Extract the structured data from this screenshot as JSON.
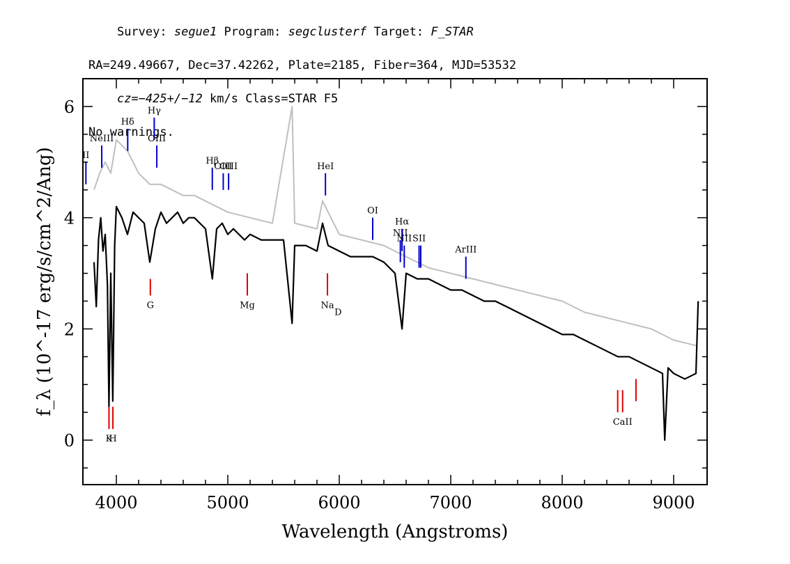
{
  "header": {
    "line1": {
      "survey_label": "Survey: ",
      "survey": "segue1",
      "program_label": " Program: ",
      "program": "segclusterf",
      "target_label": " Target: ",
      "target": "F_STAR"
    },
    "line2": "RA=249.49667, Dec=37.42262, Plate=2185, Fiber=364, MJD=53532",
    "line3": {
      "cz": "cz=−425+/−12",
      "rest": " km/s Class=STAR F5"
    },
    "line4": "No warnings."
  },
  "chart_data": {
    "type": "line",
    "xlabel": "Wavelength (Angstroms)",
    "ylabel": "f_λ (10^-17 erg/s/cm^2/Ang)",
    "xlim": [
      3700,
      9300
    ],
    "ylim": [
      -0.8,
      6.5
    ],
    "x_ticks": [
      4000,
      5000,
      6000,
      7000,
      8000,
      9000
    ],
    "y_ticks": [
      0,
      2,
      4,
      6
    ],
    "series": [
      {
        "role": "flux",
        "color": "#000000",
        "points": [
          [
            3800,
            3.2
          ],
          [
            3820,
            2.4
          ],
          [
            3840,
            3.6
          ],
          [
            3860,
            4.0
          ],
          [
            3880,
            3.4
          ],
          [
            3900,
            3.7
          ],
          [
            3920,
            2.8
          ],
          [
            3934,
            0.6
          ],
          [
            3950,
            3.0
          ],
          [
            3968,
            0.7
          ],
          [
            3985,
            3.5
          ],
          [
            4000,
            4.2
          ],
          [
            4050,
            4.0
          ],
          [
            4100,
            3.7
          ],
          [
            4150,
            4.1
          ],
          [
            4200,
            4.0
          ],
          [
            4250,
            3.9
          ],
          [
            4300,
            3.2
          ],
          [
            4350,
            3.8
          ],
          [
            4400,
            4.1
          ],
          [
            4450,
            3.9
          ],
          [
            4500,
            4.0
          ],
          [
            4550,
            4.1
          ],
          [
            4600,
            3.9
          ],
          [
            4650,
            4.0
          ],
          [
            4700,
            4.0
          ],
          [
            4750,
            3.9
          ],
          [
            4800,
            3.8
          ],
          [
            4861,
            2.9
          ],
          [
            4900,
            3.8
          ],
          [
            4950,
            3.9
          ],
          [
            5000,
            3.7
          ],
          [
            5050,
            3.8
          ],
          [
            5100,
            3.7
          ],
          [
            5150,
            3.6
          ],
          [
            5200,
            3.7
          ],
          [
            5300,
            3.6
          ],
          [
            5400,
            3.6
          ],
          [
            5500,
            3.6
          ],
          [
            5577,
            2.1
          ],
          [
            5600,
            3.5
          ],
          [
            5700,
            3.5
          ],
          [
            5800,
            3.4
          ],
          [
            5850,
            3.9
          ],
          [
            5900,
            3.5
          ],
          [
            6000,
            3.4
          ],
          [
            6100,
            3.3
          ],
          [
            6200,
            3.3
          ],
          [
            6300,
            3.3
          ],
          [
            6400,
            3.2
          ],
          [
            6500,
            3.0
          ],
          [
            6563,
            2.0
          ],
          [
            6600,
            3.0
          ],
          [
            6700,
            2.9
          ],
          [
            6800,
            2.9
          ],
          [
            6900,
            2.8
          ],
          [
            7000,
            2.7
          ],
          [
            7100,
            2.7
          ],
          [
            7200,
            2.6
          ],
          [
            7300,
            2.5
          ],
          [
            7400,
            2.5
          ],
          [
            7500,
            2.4
          ],
          [
            7600,
            2.3
          ],
          [
            7700,
            2.2
          ],
          [
            7800,
            2.1
          ],
          [
            7900,
            2.0
          ],
          [
            8000,
            1.9
          ],
          [
            8100,
            1.9
          ],
          [
            8200,
            1.8
          ],
          [
            8300,
            1.7
          ],
          [
            8400,
            1.6
          ],
          [
            8500,
            1.5
          ],
          [
            8600,
            1.5
          ],
          [
            8700,
            1.4
          ],
          [
            8800,
            1.3
          ],
          [
            8900,
            1.2
          ],
          [
            8920,
            0.0
          ],
          [
            8950,
            1.3
          ],
          [
            9000,
            1.2
          ],
          [
            9100,
            1.1
          ],
          [
            9200,
            1.2
          ],
          [
            9220,
            2.5
          ]
        ]
      },
      {
        "role": "error",
        "color": "#bfbfbf",
        "points": [
          [
            3800,
            4.5
          ],
          [
            3850,
            4.8
          ],
          [
            3900,
            5.0
          ],
          [
            3950,
            4.8
          ],
          [
            4000,
            5.4
          ],
          [
            4100,
            5.2
          ],
          [
            4200,
            4.8
          ],
          [
            4300,
            4.6
          ],
          [
            4400,
            4.6
          ],
          [
            4500,
            4.5
          ],
          [
            4600,
            4.4
          ],
          [
            4700,
            4.4
          ],
          [
            4800,
            4.3
          ],
          [
            4900,
            4.2
          ],
          [
            5000,
            4.1
          ],
          [
            5200,
            4.0
          ],
          [
            5400,
            3.9
          ],
          [
            5577,
            6.0
          ],
          [
            5600,
            3.9
          ],
          [
            5800,
            3.8
          ],
          [
            5850,
            4.3
          ],
          [
            6000,
            3.7
          ],
          [
            6200,
            3.6
          ],
          [
            6400,
            3.5
          ],
          [
            6600,
            3.3
          ],
          [
            6800,
            3.1
          ],
          [
            7000,
            3.0
          ],
          [
            7200,
            2.9
          ],
          [
            7400,
            2.8
          ],
          [
            7600,
            2.7
          ],
          [
            7800,
            2.6
          ],
          [
            8000,
            2.5
          ],
          [
            8200,
            2.3
          ],
          [
            8400,
            2.2
          ],
          [
            8600,
            2.1
          ],
          [
            8800,
            2.0
          ],
          [
            8900,
            1.9
          ],
          [
            9000,
            1.8
          ],
          [
            9200,
            1.7
          ]
        ]
      }
    ],
    "emission_lines": [
      {
        "label": "II",
        "x": 3727,
        "y1": 4.6,
        "y2": 5.0,
        "color": "#0000cc"
      },
      {
        "label": "NeIII",
        "x": 3869,
        "y1": 4.9,
        "y2": 5.3,
        "color": "#0000cc"
      },
      {
        "label": "Hδ",
        "x": 4102,
        "y1": 5.2,
        "y2": 5.6,
        "color": "#0000cc"
      },
      {
        "label": "Hγ",
        "x": 4340,
        "y1": 5.4,
        "y2": 5.8,
        "color": "#0000cc"
      },
      {
        "label": "OIII",
        "x": 4363,
        "y1": 4.9,
        "y2": 5.3,
        "color": "#0000cc"
      },
      {
        "label": "Hβ",
        "x": 4861,
        "y1": 4.5,
        "y2": 4.9,
        "color": "#0000cc"
      },
      {
        "label": "OIII",
        "x": 4959,
        "y1": 4.5,
        "y2": 4.8,
        "color": "#0000cc"
      },
      {
        "label": "OIII",
        "x": 5007,
        "y1": 4.5,
        "y2": 4.8,
        "color": "#0000cc"
      },
      {
        "label": "HeI",
        "x": 5876,
        "y1": 4.4,
        "y2": 4.8,
        "color": "#0000cc"
      },
      {
        "label": "OI",
        "x": 6300,
        "y1": 3.6,
        "y2": 4.0,
        "color": "#0000cc"
      },
      {
        "label": "NII",
        "x": 6548,
        "y1": 3.2,
        "y2": 3.6,
        "color": "#0000cc"
      },
      {
        "label": "Hα",
        "x": 6563,
        "y1": 3.4,
        "y2": 3.8,
        "color": "#0000cc"
      },
      {
        "label": "NII",
        "x": 6583,
        "y1": 3.1,
        "y2": 3.5,
        "color": "#0000cc"
      },
      {
        "label": "SII",
        "x": 6716,
        "y1": 3.1,
        "y2": 3.5,
        "color": "#0000cc"
      },
      {
        "label": "",
        "x": 6731,
        "y1": 3.1,
        "y2": 3.5,
        "color": "#0000cc"
      },
      {
        "label": "ArIII",
        "x": 7136,
        "y1": 2.9,
        "y2": 3.3,
        "color": "#0000cc"
      }
    ],
    "absorption_lines": [
      {
        "label": "K",
        "x": 3934,
        "y1": 0.2,
        "y2": 0.6,
        "color": "#dd0000"
      },
      {
        "label": "H",
        "x": 3969,
        "y1": 0.2,
        "y2": 0.6,
        "color": "#dd0000"
      },
      {
        "label": "G",
        "x": 4305,
        "y1": 2.6,
        "y2": 2.9,
        "color": "#dd0000"
      },
      {
        "label": "Mg",
        "x": 5175,
        "y1": 2.6,
        "y2": 3.0,
        "color": "#dd0000"
      },
      {
        "label": "Na",
        "x": 5894,
        "y1": 2.6,
        "y2": 3.0,
        "color": "#dd0000"
      },
      {
        "label": "",
        "x": 8498,
        "y1": 0.5,
        "y2": 0.9,
        "color": "#dd0000"
      },
      {
        "label": "CaII",
        "x": 8542,
        "y1": 0.5,
        "y2": 0.9,
        "color": "#dd0000"
      },
      {
        "label": "",
        "x": 8662,
        "y1": 0.7,
        "y2": 1.1,
        "color": "#dd0000"
      }
    ],
    "extra_labels": [
      {
        "text": "D",
        "x": 5990,
        "y": 2.25
      }
    ]
  }
}
